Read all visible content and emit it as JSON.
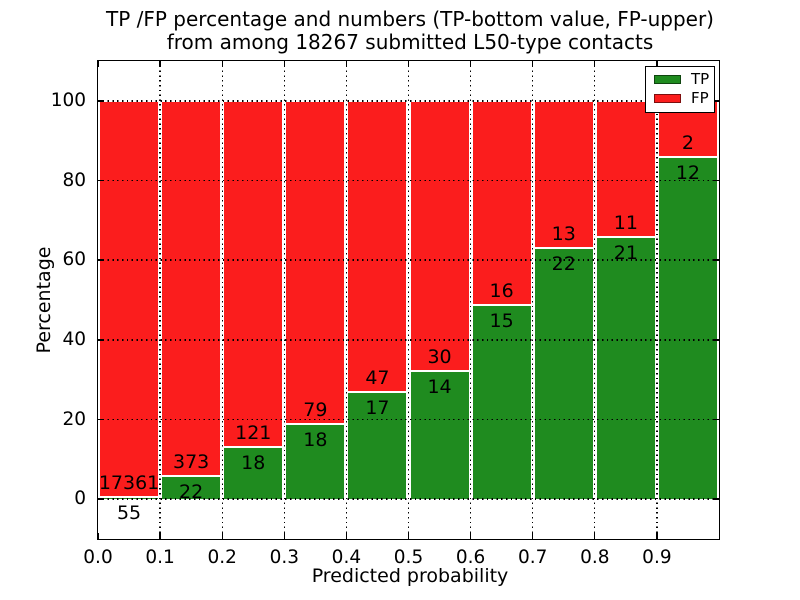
{
  "title": {
    "line1": "TP /FP percentage and numbers (TP-bottom value, FP-upper)",
    "line2": "from among 18267 submitted L50-type contacts"
  },
  "axes": {
    "xlabel": "Predicted probability",
    "ylabel": "Percentage",
    "xlim": [
      0.0,
      1.0
    ],
    "ylim": [
      -10,
      110
    ],
    "xtick_labels": [
      "0.0",
      "0.1",
      "0.2",
      "0.3",
      "0.4",
      "0.5",
      "0.6",
      "0.7",
      "0.8",
      "0.9"
    ],
    "ytick_labels": [
      "0",
      "20",
      "40",
      "60",
      "80",
      "100"
    ],
    "grid_style": "dotted"
  },
  "legend": {
    "position": "upper-right",
    "items": [
      {
        "label": "TP",
        "color": "#1f8b1f"
      },
      {
        "label": "FP",
        "color": "#fb1d1d"
      }
    ]
  },
  "chart_data": {
    "type": "bar",
    "stacked": true,
    "normalized": "percent-of-bin-total",
    "title": "TP /FP percentage and numbers (TP-bottom value, FP-upper) from among 18267 submitted L50-type contacts",
    "xlabel": "Predicted probability",
    "ylabel": "Percentage",
    "xlim": [
      0.0,
      1.0
    ],
    "ylim": [
      -10,
      110
    ],
    "bin_width": 0.1,
    "bin_starts": [
      0.0,
      0.1,
      0.2,
      0.3,
      0.4,
      0.5,
      0.6,
      0.7,
      0.8,
      0.9
    ],
    "series": [
      {
        "name": "TP",
        "color": "#1f8b1f",
        "counts": [
          55,
          22,
          18,
          18,
          17,
          14,
          15,
          22,
          21,
          12
        ]
      },
      {
        "name": "FP",
        "color": "#fb1d1d",
        "counts": [
          17361,
          373,
          121,
          79,
          47,
          30,
          16,
          13,
          11,
          2
        ]
      }
    ],
    "total_submitted_contacts": 18267,
    "annotation_rule": "FP count printed above the TP/FP boundary, TP count below it"
  }
}
